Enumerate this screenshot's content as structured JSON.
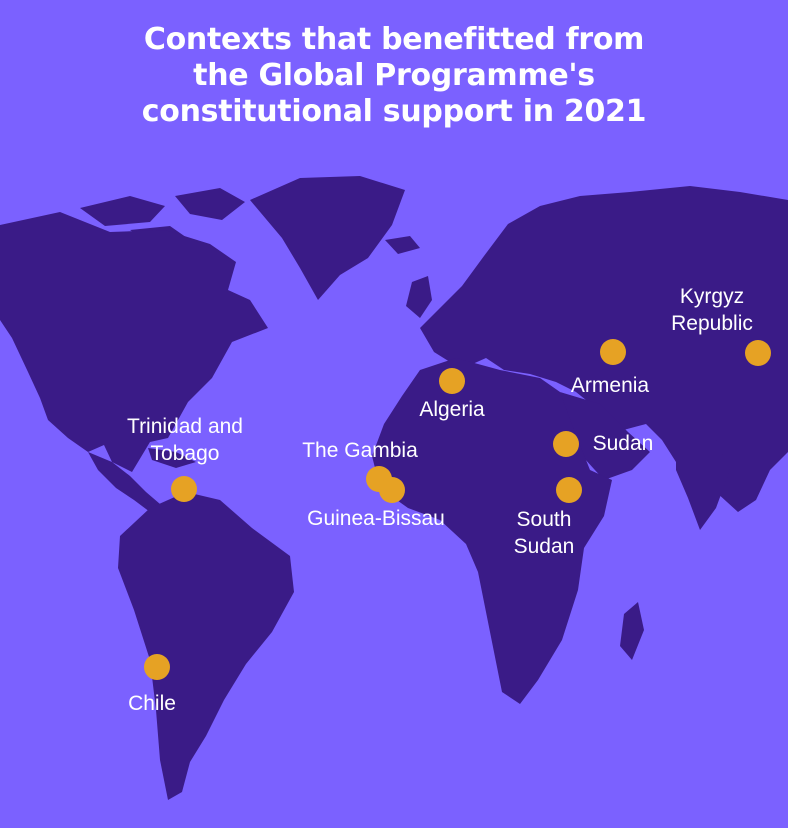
{
  "title": {
    "line1": "Contexts that benefitted from",
    "line2": "the Global Programme's",
    "line3": "constitutional support in 2021"
  },
  "colors": {
    "background": "#7b61ff",
    "land": "#3a1b87",
    "marker": "#e6a224",
    "text": "#ffffff"
  },
  "markers": {
    "kyrgyz": {
      "line1": "Kyrgyz",
      "line2": "Republic"
    },
    "armenia": {
      "line1": "Armenia"
    },
    "algeria": {
      "line1": "Algeria"
    },
    "sudan": {
      "line1": "Sudan"
    },
    "south_sudan": {
      "line1": "South",
      "line2": "Sudan"
    },
    "gambia": {
      "line1": "The Gambia"
    },
    "guinea_bissau": {
      "line1": "Guinea-Bissau"
    },
    "trinidad": {
      "line1": "Trinidad and",
      "line2": "Tobago"
    },
    "chile": {
      "line1": "Chile"
    }
  }
}
